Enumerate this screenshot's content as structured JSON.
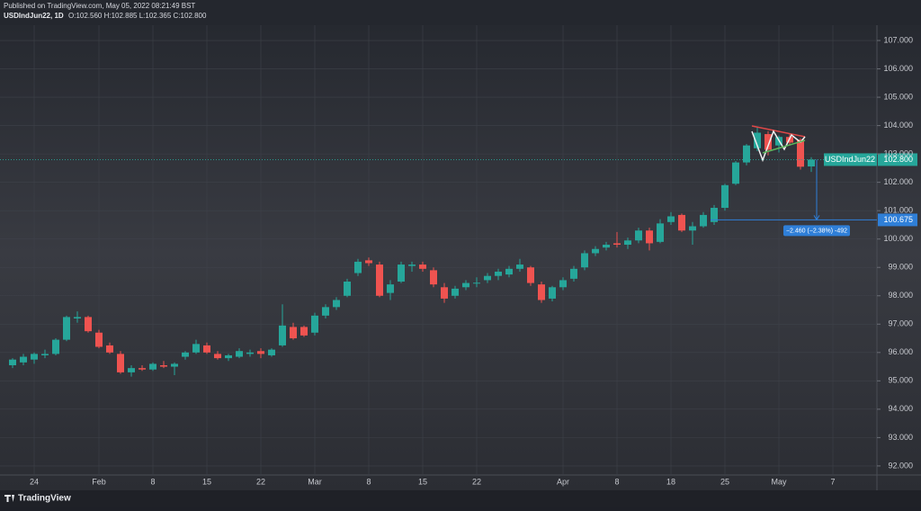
{
  "header": {
    "published": "Published on TradingView.com, May 05, 2022 08:21:49 BST",
    "symbol": "USDIndJun22, 1D",
    "ohlc": "O:102.560 H:102.885 L:102.365 C:102.800"
  },
  "footer": "TradingView",
  "chart_data": {
    "type": "candlestick",
    "categories": [
      null,
      null,
      "24",
      null,
      null,
      null,
      null,
      null,
      "Feb",
      null,
      null,
      null,
      null,
      "8",
      null,
      null,
      null,
      null,
      "15",
      null,
      null,
      null,
      null,
      "22",
      null,
      null,
      null,
      null,
      "Mar",
      null,
      null,
      null,
      null,
      "8",
      null,
      null,
      null,
      null,
      "15",
      null,
      null,
      null,
      null,
      "22",
      null,
      null,
      null,
      null,
      null,
      null,
      null,
      "Apr",
      null,
      null,
      null,
      null,
      "8",
      null,
      null,
      null,
      null,
      "18",
      null,
      null,
      null,
      null,
      "25",
      null,
      null,
      null,
      null,
      "May",
      null,
      null,
      null,
      null,
      "7"
    ],
    "open": [
      95.55,
      95.65,
      95.75,
      95.9,
      95.95,
      96.45,
      97.2,
      97.25,
      96.7,
      96.25,
      95.95,
      95.3,
      95.45,
      95.4,
      95.55,
      95.5,
      95.85,
      96.0,
      96.25,
      95.95,
      95.8,
      95.85,
      95.95,
      96.05,
      95.9,
      96.25,
      96.9,
      96.9,
      96.7,
      97.3,
      97.6,
      98.0,
      98.8,
      99.25,
      99.1,
      98.1,
      98.5,
      99.05,
      99.1,
      98.9,
      98.3,
      98.0,
      98.3,
      98.45,
      98.55,
      98.7,
      98.75,
      98.95,
      99.0,
      98.4,
      97.9,
      98.3,
      98.6,
      99.0,
      99.5,
      99.7,
      99.85,
      99.8,
      99.95,
      100.3,
      99.9,
      100.6,
      100.85,
      100.3,
      100.45,
      100.6,
      101.1,
      101.95,
      102.7,
      103.2,
      103.7,
      103.3,
      103.6,
      103.5,
      102.56,
      null,
      null
    ],
    "high": [
      95.8,
      95.95,
      96.0,
      96.1,
      96.5,
      97.3,
      97.45,
      97.3,
      96.8,
      96.35,
      96.05,
      95.55,
      95.55,
      95.65,
      95.7,
      95.65,
      96.05,
      96.45,
      96.35,
      96.05,
      95.95,
      96.15,
      96.1,
      96.15,
      96.15,
      97.7,
      97.05,
      96.95,
      97.4,
      97.7,
      97.95,
      98.6,
      99.3,
      99.35,
      99.2,
      98.55,
      99.2,
      99.2,
      99.2,
      99.0,
      98.45,
      98.35,
      98.55,
      98.65,
      98.8,
      98.95,
      99.05,
      99.3,
      99.05,
      98.5,
      98.35,
      98.65,
      99.05,
      99.6,
      99.75,
      99.9,
      100.25,
      100.05,
      100.4,
      100.4,
      100.7,
      100.95,
      100.9,
      100.6,
      100.95,
      101.2,
      101.95,
      102.75,
      103.35,
      103.95,
      103.8,
      103.65,
      103.7,
      103.55,
      102.885,
      null,
      null
    ],
    "low": [
      95.45,
      95.55,
      95.6,
      95.8,
      95.9,
      96.4,
      97.05,
      96.7,
      96.15,
      95.95,
      95.25,
      95.15,
      95.35,
      95.35,
      95.45,
      95.2,
      95.75,
      95.95,
      95.95,
      95.75,
      95.7,
      95.8,
      95.85,
      95.8,
      95.85,
      96.2,
      96.45,
      96.55,
      96.6,
      97.2,
      97.5,
      97.95,
      98.7,
      99.05,
      97.95,
      97.85,
      98.45,
      98.85,
      98.85,
      98.3,
      97.75,
      97.9,
      98.2,
      98.3,
      98.45,
      98.55,
      98.65,
      98.85,
      98.35,
      97.75,
      97.8,
      98.2,
      98.5,
      98.9,
      99.4,
      99.6,
      99.7,
      99.65,
      99.85,
      99.6,
      99.85,
      100.5,
      100.25,
      99.8,
      100.4,
      100.5,
      101.0,
      101.9,
      102.6,
      103.1,
      102.95,
      103.05,
      103.3,
      102.45,
      102.365,
      null,
      null
    ],
    "close": [
      95.75,
      95.85,
      95.95,
      95.95,
      96.45,
      97.25,
      97.25,
      96.75,
      96.2,
      96.0,
      95.3,
      95.45,
      95.4,
      95.6,
      95.5,
      95.6,
      96.0,
      96.3,
      96.0,
      95.8,
      95.9,
      96.05,
      96.0,
      95.95,
      96.1,
      96.95,
      96.5,
      96.6,
      97.3,
      97.6,
      97.85,
      98.5,
      99.2,
      99.15,
      98.0,
      98.4,
      99.1,
      99.1,
      98.95,
      98.4,
      97.9,
      98.25,
      98.45,
      98.46,
      98.7,
      98.85,
      98.95,
      99.1,
      98.45,
      97.85,
      98.3,
      98.55,
      98.95,
      99.5,
      99.65,
      99.8,
      99.8,
      99.95,
      100.3,
      99.85,
      100.55,
      100.8,
      100.3,
      100.45,
      100.85,
      101.1,
      101.9,
      102.7,
      103.3,
      103.75,
      103.15,
      103.6,
      103.4,
      102.55,
      102.8,
      null,
      null
    ],
    "up_color": "#26a69a",
    "down_color": "#ef5350",
    "ylim": [
      91.68,
      107.54
    ],
    "yticks": [
      {
        "value": 92,
        "label": "92.000"
      },
      {
        "value": 93,
        "label": "93.000"
      },
      {
        "value": 94,
        "label": "94.000"
      },
      {
        "value": 95,
        "label": "95.000"
      },
      {
        "value": 96,
        "label": "96.000"
      },
      {
        "value": 97,
        "label": "97.000"
      },
      {
        "value": 98,
        "label": "98.000"
      },
      {
        "value": 99,
        "label": "99.000"
      },
      {
        "value": 100,
        "label": "100.000"
      },
      {
        "value": 101,
        "label": "101.000"
      },
      {
        "value": 102,
        "label": "102.000"
      },
      {
        "value": 103,
        "label": "103.000"
      },
      {
        "value": 104,
        "label": "104.000"
      },
      {
        "value": 105,
        "label": "105.000"
      },
      {
        "value": 106,
        "label": "106.000"
      },
      {
        "value": 107,
        "label": "107.000"
      }
    ],
    "grid": true,
    "last_price": {
      "name": "USDIndJun22",
      "value": 102.8,
      "label": "102.800"
    },
    "measure": {
      "value": 100.675,
      "value_label": "100.675",
      "label": "−2.460 (−2.38%) -492"
    }
  }
}
